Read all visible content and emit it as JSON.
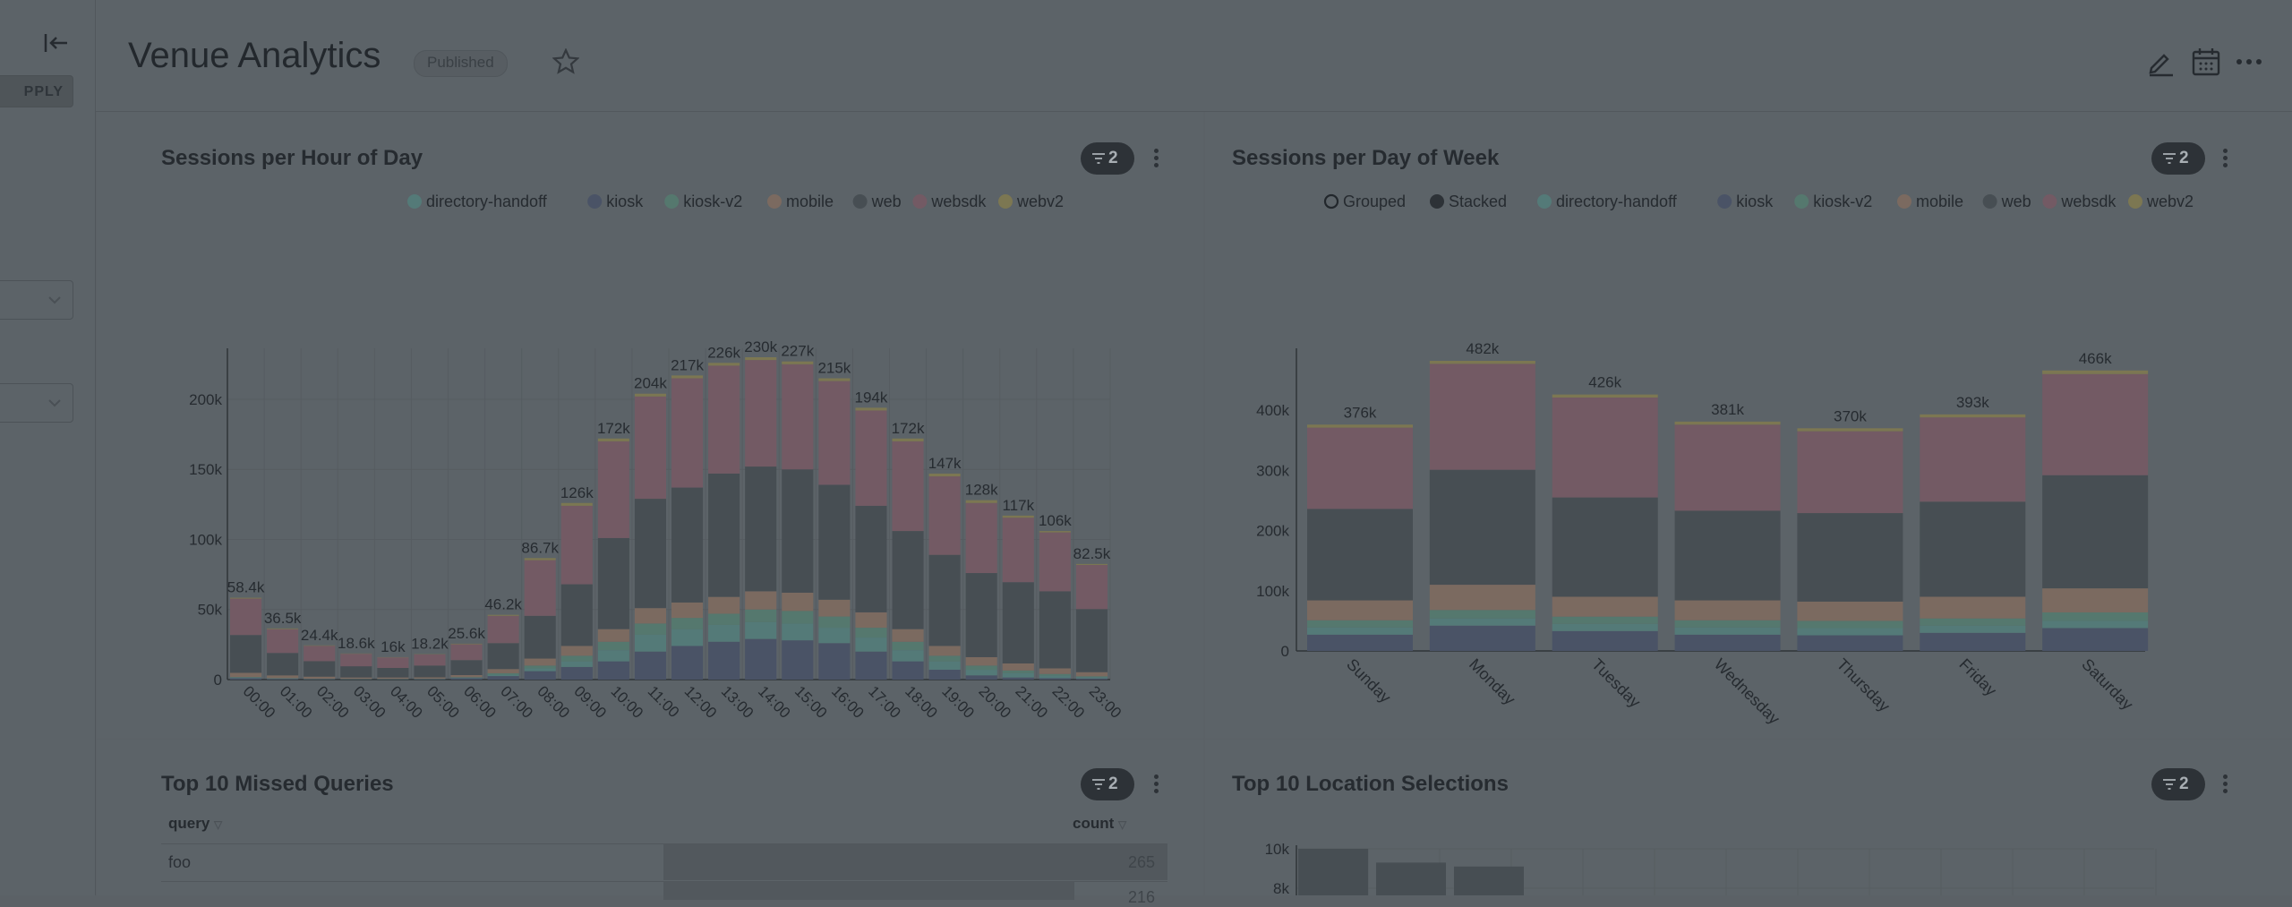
{
  "sidebar": {
    "apply_label": "PPLY"
  },
  "header": {
    "title": "Venue Analytics",
    "status": "Published"
  },
  "colors": {
    "directory-handoff": "#547a78",
    "kiosk": "#4a5366",
    "kiosk-v2": "#55786e",
    "mobile": "#7b6a60",
    "web": "#474e53",
    "websdk": "#735a64",
    "webv2": "#7c7752"
  },
  "charts": {
    "hour": {
      "title": "Sessions per Hour of Day",
      "filter_count": "2",
      "legend": [
        "directory-handoff",
        "kiosk",
        "kiosk-v2",
        "mobile",
        "web",
        "websdk",
        "webv2"
      ],
      "chart_data": {
        "type": "bar",
        "stacked": true,
        "categories": [
          "00:00",
          "01:00",
          "02:00",
          "03:00",
          "04:00",
          "05:00",
          "06:00",
          "07:00",
          "08:00",
          "09:00",
          "10:00",
          "11:00",
          "12:00",
          "13:00",
          "14:00",
          "15:00",
          "16:00",
          "17:00",
          "18:00",
          "19:00",
          "20:00",
          "21:00",
          "22:00",
          "23:00"
        ],
        "totals": [
          58400,
          36500,
          24400,
          18600,
          16000,
          18200,
          25600,
          46200,
          86700,
          126000,
          172000,
          204000,
          217000,
          226000,
          230000,
          227000,
          215000,
          194000,
          172000,
          147000,
          128000,
          117000,
          106000,
          82500
        ],
        "total_labels": [
          "58.4k",
          "36.5k",
          "24.4k",
          "18.6k",
          "16k",
          "18.2k",
          "25.6k",
          "46.2k",
          "86.7k",
          "126k",
          "172k",
          "204k",
          "217k",
          "226k",
          "230k",
          "227k",
          "215k",
          "194k",
          "172k",
          "147k",
          "128k",
          "117k",
          "106k",
          "82.5k"
        ],
        "series": [
          {
            "name": "kiosk",
            "values": [
              1000,
              500,
              300,
              200,
              200,
              300,
              1000,
              2500,
              6000,
              9000,
              13000,
              20000,
              24000,
              27000,
              29000,
              28000,
              26000,
              20000,
              13000,
              7000,
              3000,
              1500,
              1000,
              800
            ]
          },
          {
            "name": "directory-handoff",
            "values": [
              500,
              300,
              200,
              200,
              200,
              200,
              400,
              1000,
              2000,
              4000,
              8000,
              12000,
              12000,
              12000,
              12000,
              12000,
              11000,
              10000,
              8000,
              6000,
              4000,
              3000,
              2000,
              1000
            ]
          },
          {
            "name": "kiosk-v2",
            "values": [
              300,
              200,
              100,
              100,
              100,
              100,
              300,
              1000,
              2000,
              4000,
              6000,
              8000,
              8000,
              8000,
              9000,
              9000,
              8000,
              7000,
              6000,
              4000,
              3000,
              2000,
              1000,
              500
            ]
          },
          {
            "name": "mobile",
            "values": [
              3000,
              2000,
              1500,
              1000,
              1000,
              1000,
              1500,
              3000,
              5000,
              7000,
              9000,
              11000,
              11000,
              12000,
              13000,
              13000,
              12000,
              11000,
              9000,
              7000,
              6000,
              5000,
              4000,
              3000
            ]
          },
          {
            "name": "web",
            "values": [
              27000,
              16000,
              11000,
              8000,
              6800,
              8400,
              10700,
              18500,
              30500,
              44000,
              65000,
              78000,
              82000,
              88000,
              89000,
              88000,
              82000,
              76000,
              70000,
              65000,
              60000,
              58000,
              55000,
              45000
            ]
          },
          {
            "name": "websdk",
            "values": [
              26000,
              17000,
              11000,
              8900,
              7500,
              8000,
              11300,
              19500,
              39700,
              56000,
              69000,
              73000,
              78000,
              77000,
              76000,
              75000,
              74000,
              68000,
              64000,
              56000,
              50000,
              46000,
              42000,
              31500
            ]
          },
          {
            "name": "webv2",
            "values": [
              600,
              500,
              300,
              200,
              200,
              200,
              400,
              700,
              1500,
              2000,
              2000,
              2000,
              2000,
              2000,
              2000,
              2000,
              2000,
              2000,
              2000,
              2000,
              2000,
              1500,
              1000,
              700
            ]
          }
        ],
        "yticks": [
          "0",
          "50k",
          "100k",
          "150k",
          "200k"
        ],
        "ylim": [
          0,
          230000
        ]
      }
    },
    "week": {
      "title": "Sessions per Day of Week",
      "filter_count": "2",
      "mode_options": [
        "Grouped",
        "Stacked"
      ],
      "legend": [
        "directory-handoff",
        "kiosk",
        "kiosk-v2",
        "mobile",
        "web",
        "websdk",
        "webv2"
      ],
      "chart_data": {
        "type": "bar",
        "stacked": true,
        "categories": [
          "Sunday",
          "Monday",
          "Tuesday",
          "Wednesday",
          "Thursday",
          "Friday",
          "Saturday"
        ],
        "totals": [
          376000,
          482000,
          426000,
          381000,
          370000,
          393000,
          466000
        ],
        "total_labels": [
          "376k",
          "482k",
          "426k",
          "381k",
          "370k",
          "393k",
          "466k"
        ],
        "series": [
          {
            "name": "kiosk",
            "values": [
              27000,
              42000,
              33000,
              27000,
              26000,
              30000,
              38000
            ]
          },
          {
            "name": "directory-handoff",
            "values": [
              12000,
              12000,
              12000,
              12000,
              12000,
              12000,
              12000
            ]
          },
          {
            "name": "kiosk-v2",
            "values": [
              12000,
              14000,
              12000,
              12000,
              12000,
              12000,
              14000
            ]
          },
          {
            "name": "mobile",
            "values": [
              33000,
              42000,
              33000,
              33000,
              32000,
              36000,
              40000
            ]
          },
          {
            "name": "web",
            "values": [
              152000,
              191000,
              165000,
              149000,
              147000,
              158000,
              188000
            ]
          },
          {
            "name": "websdk",
            "values": [
              135000,
              176000,
              166000,
              143000,
              136000,
              140000,
              168000
            ]
          },
          {
            "name": "webv2",
            "values": [
              5000,
              5000,
              5000,
              5000,
              5000,
              5000,
              6000
            ]
          }
        ],
        "yticks": [
          "0",
          "100k",
          "200k",
          "300k",
          "400k"
        ],
        "ylim": [
          0,
          482000
        ]
      }
    },
    "missed": {
      "title": "Top 10 Missed Queries",
      "filter_count": "2",
      "columns": [
        "query",
        "count"
      ],
      "rows": [
        {
          "query": "foo",
          "count": "265"
        },
        {
          "query": "",
          "count": "216"
        }
      ]
    },
    "locations": {
      "title": "Top 10 Location Selections",
      "filter_count": "2",
      "chart_data": {
        "type": "bar",
        "yticks": [
          "8k",
          "10k"
        ],
        "values": [
          10000,
          9300,
          9100
        ]
      }
    }
  }
}
